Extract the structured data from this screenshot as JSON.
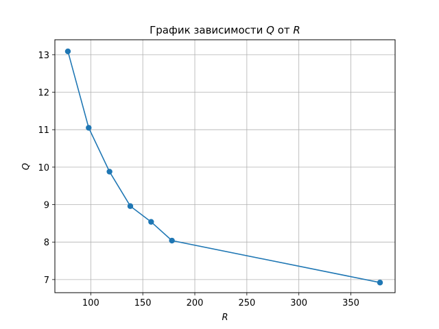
{
  "chart_data": {
    "type": "line",
    "title_prefix": "График зависимости ",
    "title_var_q": "Q",
    "title_mid": " от ",
    "title_var_r": "R",
    "xlabel": "R",
    "ylabel": "Q",
    "xlim": [
      65.5,
      392.5
    ],
    "ylim": [
      6.65,
      13.4
    ],
    "xticks": [
      100,
      150,
      200,
      250,
      300,
      350
    ],
    "yticks": [
      7,
      8,
      9,
      10,
      11,
      12,
      13
    ],
    "grid": true,
    "markers": "circle",
    "color": "#1f77b4",
    "x": [
      78,
      98,
      118,
      138,
      158,
      178,
      378
    ],
    "y": [
      13.09,
      11.05,
      9.88,
      8.96,
      8.54,
      8.04,
      6.92
    ]
  }
}
